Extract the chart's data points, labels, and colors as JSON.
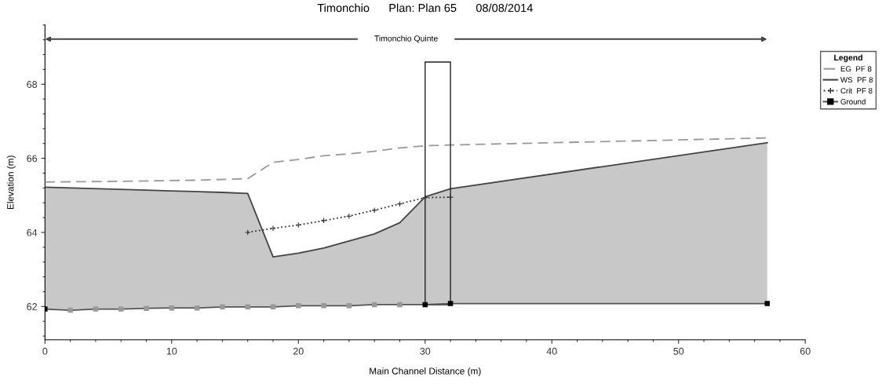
{
  "chart_data": {
    "type": "line",
    "title": "Timonchio      Plan: Plan 65      08/08/2014",
    "xlabel": "Main Channel Distance (m)",
    "ylabel": "Elevation (m)",
    "legend_title": "Legend",
    "annotations": [
      "Timonchio Quinte"
    ],
    "xlim": [
      0,
      60
    ],
    "xticks": [
      0,
      10,
      20,
      30,
      40,
      50,
      60
    ],
    "ylim": [
      61.1,
      69.6
    ],
    "yticks": [
      62,
      64,
      66,
      68
    ],
    "grid": false,
    "legend": "right",
    "series": [
      {
        "name": "EG  PF 8",
        "line_style": "dashed",
        "marker": "none",
        "color": "#999999",
        "x": [
          0,
          6,
          12,
          16,
          18,
          20,
          22,
          24,
          26,
          28,
          30,
          32,
          57
        ],
        "values": [
          65.36,
          65.38,
          65.41,
          65.45,
          65.89,
          65.97,
          66.07,
          66.12,
          66.19,
          66.28,
          66.34,
          66.36,
          66.55
        ]
      },
      {
        "name": "WS  PF 8",
        "type": "area",
        "line_style": "solid",
        "marker": "none",
        "color": "#444444",
        "x": [
          0,
          7,
          10,
          14,
          16,
          18,
          20,
          22,
          24,
          26,
          28,
          30,
          32,
          57
        ],
        "values": [
          65.22,
          65.15,
          65.12,
          65.08,
          65.05,
          63.34,
          63.44,
          63.58,
          63.77,
          63.96,
          64.26,
          64.96,
          65.18,
          66.42
        ]
      },
      {
        "name": "Crit  PF 8",
        "line_style": "dotted",
        "marker": "cross",
        "color": "#333333",
        "x": [
          16,
          18,
          20,
          22,
          24,
          26,
          28,
          30,
          32
        ],
        "values": [
          64.0,
          64.11,
          64.2,
          64.32,
          64.44,
          64.6,
          64.77,
          64.94,
          64.95
        ]
      },
      {
        "type": "bar",
        "color": "#222222",
        "x": [
          31
        ],
        "base": [
          62.05
        ],
        "values": [
          6.55
        ]
      },
      {
        "name": "Ground",
        "line_style": "solid",
        "marker": "square",
        "color": "#555555",
        "x": [
          0,
          2,
          4,
          6,
          8,
          10,
          12,
          14,
          16,
          18,
          20,
          22,
          24,
          26,
          28,
          30,
          32,
          57
        ],
        "values": [
          61.93,
          61.9,
          61.93,
          61.93,
          61.95,
          61.96,
          61.96,
          61.99,
          61.99,
          61.99,
          62.02,
          62.02,
          62.02,
          62.05,
          62.05,
          62.05,
          62.08,
          62.08
        ],
        "colors": [
          "#000000",
          "#999999",
          "#999999",
          "#999999",
          "#999999",
          "#999999",
          "#999999",
          "#999999",
          "#999999",
          "#999999",
          "#999999",
          "#999999",
          "#999999",
          "#999999",
          "#999999",
          "#000000",
          "#000000",
          "#000000"
        ]
      }
    ]
  }
}
